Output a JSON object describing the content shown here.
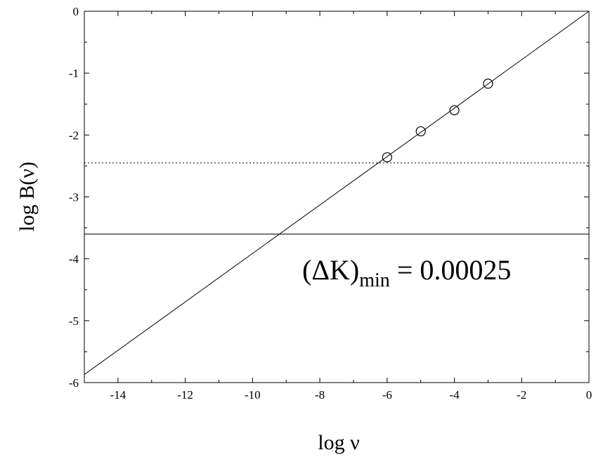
{
  "chart_data": {
    "type": "line",
    "xlabel": "log ν",
    "ylabel": "log B(ν)",
    "xlim": [
      -15,
      0
    ],
    "ylim": [
      -6,
      0
    ],
    "x_ticks": [
      -14,
      -12,
      -10,
      -8,
      -6,
      -4,
      -2,
      0
    ],
    "y_ticks": [
      0,
      -1,
      -2,
      -3,
      -4,
      -5,
      -6
    ],
    "grid": false,
    "series": [
      {
        "style": "solid-line",
        "x": [
          -15,
          0
        ],
        "y": [
          -5.87,
          0.0
        ]
      },
      {
        "style": "open-circle-markers",
        "x": [
          -6,
          -5,
          -4,
          -3
        ],
        "y": [
          -2.36,
          -1.94,
          -1.6,
          -1.17
        ]
      }
    ],
    "reference_lines": [
      {
        "orientation": "horizontal",
        "style": "dotted",
        "y": -2.45
      },
      {
        "orientation": "horizontal",
        "style": "solid",
        "y": -3.6
      }
    ],
    "annotation": {
      "prefix": "(ΔK)",
      "subscript": "min",
      "suffix": " = 0.00025"
    }
  }
}
